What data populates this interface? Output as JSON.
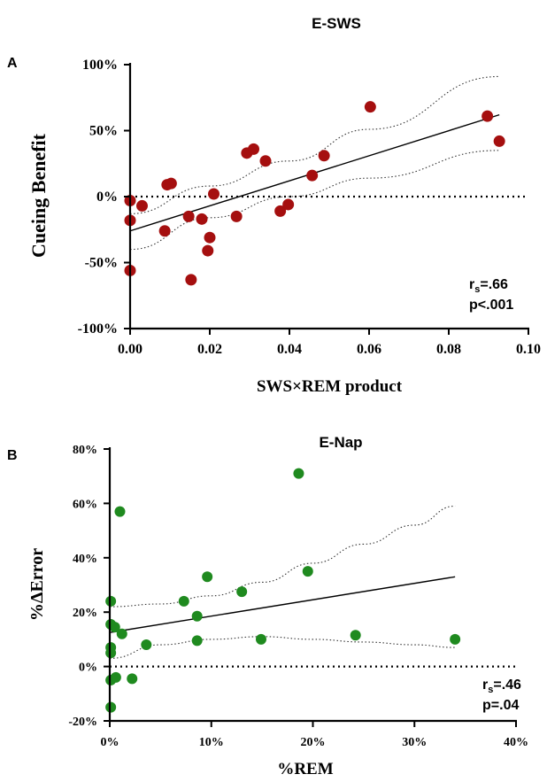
{
  "chart_data": [
    {
      "panel_label": "A",
      "type": "scatter",
      "title": "E-SWS",
      "xlabel": "SWS×REM product",
      "ylabel": "Cueing Benefit",
      "xlim": [
        0,
        0.1
      ],
      "ylim": [
        -100,
        100
      ],
      "x_ticks": [
        0,
        0.02,
        0.04,
        0.06,
        0.08,
        0.1
      ],
      "x_tick_labels": [
        "0.00",
        "0.02",
        "0.04",
        "0.06",
        "0.08",
        "0.10"
      ],
      "y_ticks": [
        -100,
        -50,
        0,
        50,
        100
      ],
      "y_tick_labels": [
        "-100%",
        "-50%",
        "0%",
        "50%",
        "100%"
      ],
      "point_color": "#a50f0f",
      "points": [
        {
          "x": 0.0,
          "y": -3
        },
        {
          "x": 0.0,
          "y": -18
        },
        {
          "x": 0.0,
          "y": -56
        },
        {
          "x": 0.003,
          "y": -7
        },
        {
          "x": 0.0087,
          "y": -26
        },
        {
          "x": 0.0093,
          "y": 9
        },
        {
          "x": 0.0103,
          "y": 10
        },
        {
          "x": 0.0147,
          "y": -15
        },
        {
          "x": 0.0153,
          "y": -63
        },
        {
          "x": 0.018,
          "y": -17
        },
        {
          "x": 0.0195,
          "y": -41
        },
        {
          "x": 0.02,
          "y": -31
        },
        {
          "x": 0.021,
          "y": 2
        },
        {
          "x": 0.0267,
          "y": -15
        },
        {
          "x": 0.0293,
          "y": 33
        },
        {
          "x": 0.031,
          "y": 36
        },
        {
          "x": 0.034,
          "y": 27
        },
        {
          "x": 0.0377,
          "y": -11
        },
        {
          "x": 0.0397,
          "y": -6
        },
        {
          "x": 0.0457,
          "y": 16
        },
        {
          "x": 0.0487,
          "y": 31
        },
        {
          "x": 0.0603,
          "y": 68
        },
        {
          "x": 0.0897,
          "y": 61
        },
        {
          "x": 0.0927,
          "y": 42
        }
      ],
      "fit_line": {
        "x": [
          0.0,
          0.0927
        ],
        "y": [
          -26,
          62
        ]
      },
      "ci_upper": {
        "x": [
          0.0,
          0.02,
          0.04,
          0.06,
          0.0927
        ],
        "y": [
          -13,
          8,
          27,
          51,
          91
        ]
      },
      "ci_lower": {
        "x": [
          0.0,
          0.02,
          0.04,
          0.06,
          0.0927
        ],
        "y": [
          -40,
          -16,
          0,
          14,
          35
        ]
      },
      "reference_y": 0,
      "annotation": {
        "r_prefix": "r",
        "r_sub": "s",
        "r_value": "=.66",
        "p": "p<.001"
      }
    },
    {
      "panel_label": "B",
      "type": "scatter",
      "title": "E-Nap",
      "xlabel": "%REM",
      "ylabel": "%ΔError",
      "xlim": [
        0,
        40
      ],
      "ylim": [
        -20,
        80
      ],
      "x_ticks": [
        0,
        10,
        20,
        30,
        40
      ],
      "x_tick_labels": [
        "0%",
        "10%",
        "20%",
        "30%",
        "40%"
      ],
      "y_ticks": [
        -20,
        0,
        20,
        40,
        60,
        80
      ],
      "y_tick_labels": [
        "-20%",
        "0%",
        "20%",
        "40%",
        "60%",
        "80%"
      ],
      "point_color": "#1f8a1f",
      "points": [
        {
          "x": 0.1,
          "y": 24
        },
        {
          "x": 0.1,
          "y": 15.5
        },
        {
          "x": 0.1,
          "y": 7
        },
        {
          "x": 0.1,
          "y": 5
        },
        {
          "x": 0.1,
          "y": -5
        },
        {
          "x": 0.1,
          "y": -15
        },
        {
          "x": 0.5,
          "y": 14.5
        },
        {
          "x": 0.6,
          "y": -4
        },
        {
          "x": 1.0,
          "y": 57
        },
        {
          "x": 1.2,
          "y": 12
        },
        {
          "x": 2.2,
          "y": -4.5
        },
        {
          "x": 3.6,
          "y": 8
        },
        {
          "x": 7.3,
          "y": 24
        },
        {
          "x": 8.6,
          "y": 18.5
        },
        {
          "x": 8.6,
          "y": 9.5
        },
        {
          "x": 9.6,
          "y": 33
        },
        {
          "x": 13.0,
          "y": 27.5
        },
        {
          "x": 14.9,
          "y": 10
        },
        {
          "x": 18.6,
          "y": 71
        },
        {
          "x": 19.5,
          "y": 35
        },
        {
          "x": 24.2,
          "y": 11.5
        },
        {
          "x": 34.0,
          "y": 10
        }
      ],
      "fit_line": {
        "x": [
          0.0,
          34.0
        ],
        "y": [
          12.5,
          33
        ]
      },
      "ci_upper": {
        "x": [
          0,
          5,
          10,
          15,
          20,
          25,
          30,
          34
        ],
        "y": [
          22,
          23,
          26,
          31,
          38,
          45,
          52,
          59
        ]
      },
      "ci_lower": {
        "x": [
          0,
          5,
          10,
          15,
          20,
          25,
          30,
          34
        ],
        "y": [
          3,
          8,
          10,
          11,
          10,
          9,
          8,
          7
        ]
      },
      "reference_y": 0,
      "annotation": {
        "r_prefix": "r",
        "r_sub": "s",
        "r_value": "=.46",
        "p": "p=.04"
      }
    }
  ]
}
